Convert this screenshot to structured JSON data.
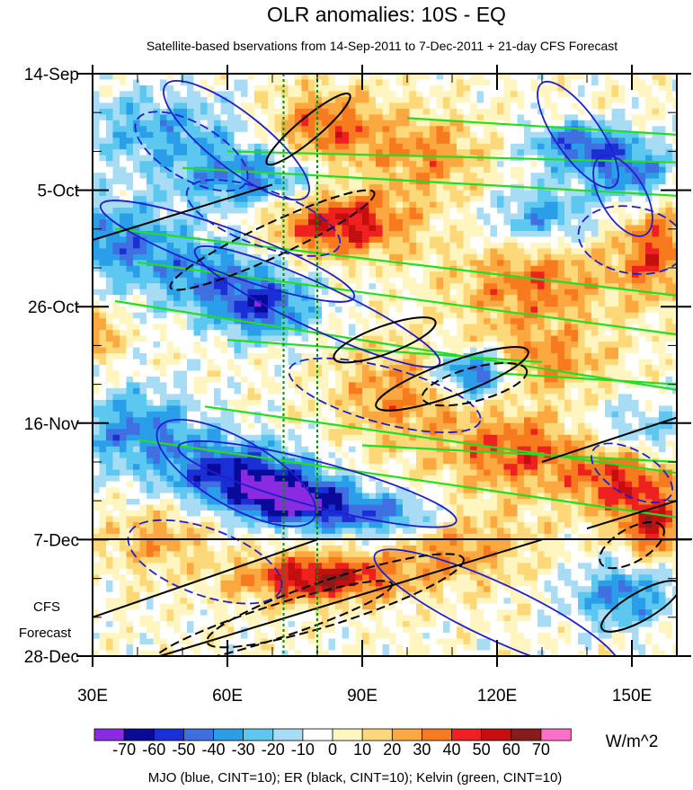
{
  "chart_data": {
    "type": "heatmap",
    "title": "OLR anomalies: 10S - EQ",
    "subtitle": "Satellite-based bservations from 14-Sep-2011 to 7-Dec-2011 + 21-day CFS Forecast",
    "forecast_label_line1": "CFS",
    "forecast_label_line2": "Forecast",
    "units": "W/m^2",
    "footer": "MJO (blue, CINT=10); ER (black, CINT=10); Kelvin (green, CINT=10)",
    "x_axis": {
      "range_deg": [
        30,
        160
      ],
      "ticks": [
        30,
        60,
        90,
        120,
        150
      ],
      "tick_labels": [
        "30E",
        "60E",
        "90E",
        "120E",
        "150E"
      ],
      "minor_step_deg": 10
    },
    "y_axis": {
      "range_days": [
        0,
        105
      ],
      "reversed": true,
      "ticks_days": [
        0,
        21,
        42,
        63,
        84,
        105
      ],
      "tick_labels": [
        "14-Sep",
        "5-Oct",
        "26-Oct",
        "16-Nov",
        "7-Dec",
        "28-Dec"
      ],
      "minor_step_days": 7
    },
    "forecast_start_day": 84,
    "reference_longitudes": [
      72.5,
      80
    ],
    "colorbar": {
      "labels": [
        "-70",
        "-60",
        "-50",
        "-40",
        "-30",
        "-20",
        "-10",
        "0",
        "10",
        "20",
        "30",
        "40",
        "50",
        "60",
        "70"
      ],
      "colors": [
        "#8a2be2",
        "#0a0a9a",
        "#1a2fd4",
        "#3f6fe0",
        "#2a9ee8",
        "#5cc8f0",
        "#a8dcf5",
        "#ffffff",
        "#fff5c0",
        "#fcd878",
        "#fba840",
        "#f87a1e",
        "#ee2020",
        "#c40f0f",
        "#8b1a1a",
        "#ff6ec7"
      ]
    },
    "contour_colors": {
      "mjo": "#1f1fd0",
      "er": "#000000",
      "kelvin": "#22dd22",
      "reference_line": "#118811"
    },
    "anomaly_features": [
      {
        "type": "neg",
        "lon": 45,
        "day": 10,
        "value": -30,
        "sigma_lon": 14,
        "sigma_day": 5
      },
      {
        "type": "neg",
        "lon": 65,
        "day": 19,
        "value": -40,
        "sigma_lon": 12,
        "sigma_day": 4
      },
      {
        "type": "neg",
        "lon": 35,
        "day": 30,
        "value": -40,
        "sigma_lon": 9,
        "sigma_day": 5
      },
      {
        "type": "neg",
        "lon": 55,
        "day": 36,
        "value": -35,
        "sigma_lon": 10,
        "sigma_day": 5
      },
      {
        "type": "neg",
        "lon": 68,
        "day": 42,
        "value": -50,
        "sigma_lon": 8,
        "sigma_day": 4
      },
      {
        "type": "neg",
        "lon": 115,
        "day": 54,
        "value": -60,
        "sigma_lon": 6,
        "sigma_day": 3
      },
      {
        "type": "neg",
        "lon": 40,
        "day": 64,
        "value": -40,
        "sigma_lon": 10,
        "sigma_day": 5
      },
      {
        "type": "neg",
        "lon": 62,
        "day": 72,
        "value": -60,
        "sigma_lon": 11,
        "sigma_day": 4
      },
      {
        "type": "neg",
        "lon": 75,
        "day": 77,
        "value": -70,
        "sigma_lon": 9,
        "sigma_day": 3
      },
      {
        "type": "neg",
        "lon": 95,
        "day": 80,
        "value": -45,
        "sigma_lon": 10,
        "sigma_day": 3
      },
      {
        "type": "neg",
        "lon": 138,
        "day": 13,
        "value": -45,
        "sigma_lon": 8,
        "sigma_day": 3
      },
      {
        "type": "neg",
        "lon": 150,
        "day": 18,
        "value": -40,
        "sigma_lon": 7,
        "sigma_day": 4
      },
      {
        "type": "neg",
        "lon": 130,
        "day": 26,
        "value": -35,
        "sigma_lon": 8,
        "sigma_day": 4
      },
      {
        "type": "neg",
        "lon": 148,
        "day": 94,
        "value": -40,
        "sigma_lon": 8,
        "sigma_day": 4
      },
      {
        "type": "neg",
        "lon": 150,
        "day": 65,
        "value": -30,
        "sigma_lon": 9,
        "sigma_day": 4
      },
      {
        "type": "pos",
        "lon": 82,
        "day": 10,
        "value": 40,
        "sigma_lon": 9,
        "sigma_day": 5
      },
      {
        "type": "pos",
        "lon": 85,
        "day": 27,
        "value": 55,
        "sigma_lon": 11,
        "sigma_day": 4
      },
      {
        "type": "pos",
        "lon": 105,
        "day": 15,
        "value": 30,
        "sigma_lon": 9,
        "sigma_day": 5
      },
      {
        "type": "pos",
        "lon": 128,
        "day": 38,
        "value": 35,
        "sigma_lon": 12,
        "sigma_day": 6
      },
      {
        "type": "pos",
        "lon": 98,
        "day": 58,
        "value": 30,
        "sigma_lon": 10,
        "sigma_day": 6
      },
      {
        "type": "pos",
        "lon": 125,
        "day": 68,
        "value": 40,
        "sigma_lon": 12,
        "sigma_day": 5
      },
      {
        "type": "pos",
        "lon": 148,
        "day": 73,
        "value": 45,
        "sigma_lon": 8,
        "sigma_day": 5
      },
      {
        "type": "pos",
        "lon": 155,
        "day": 82,
        "value": 45,
        "sigma_lon": 5,
        "sigma_day": 4
      },
      {
        "type": "pos",
        "lon": 80,
        "day": 91,
        "value": 60,
        "sigma_lon": 12,
        "sigma_day": 3
      },
      {
        "type": "pos",
        "lon": 110,
        "day": 85,
        "value": 30,
        "sigma_lon": 12,
        "sigma_day": 5
      },
      {
        "type": "pos",
        "lon": 155,
        "day": 32,
        "value": 40,
        "sigma_lon": 6,
        "sigma_day": 6
      },
      {
        "type": "pos",
        "lon": 130,
        "day": 52,
        "value": 30,
        "sigma_lon": 10,
        "sigma_day": 4
      },
      {
        "type": "pos",
        "lon": 45,
        "day": 84,
        "value": 25,
        "sigma_lon": 8,
        "sigma_day": 4
      },
      {
        "type": "pos",
        "lon": 31,
        "day": 47,
        "value": 35,
        "sigma_lon": 3,
        "sigma_day": 3
      }
    ]
  }
}
